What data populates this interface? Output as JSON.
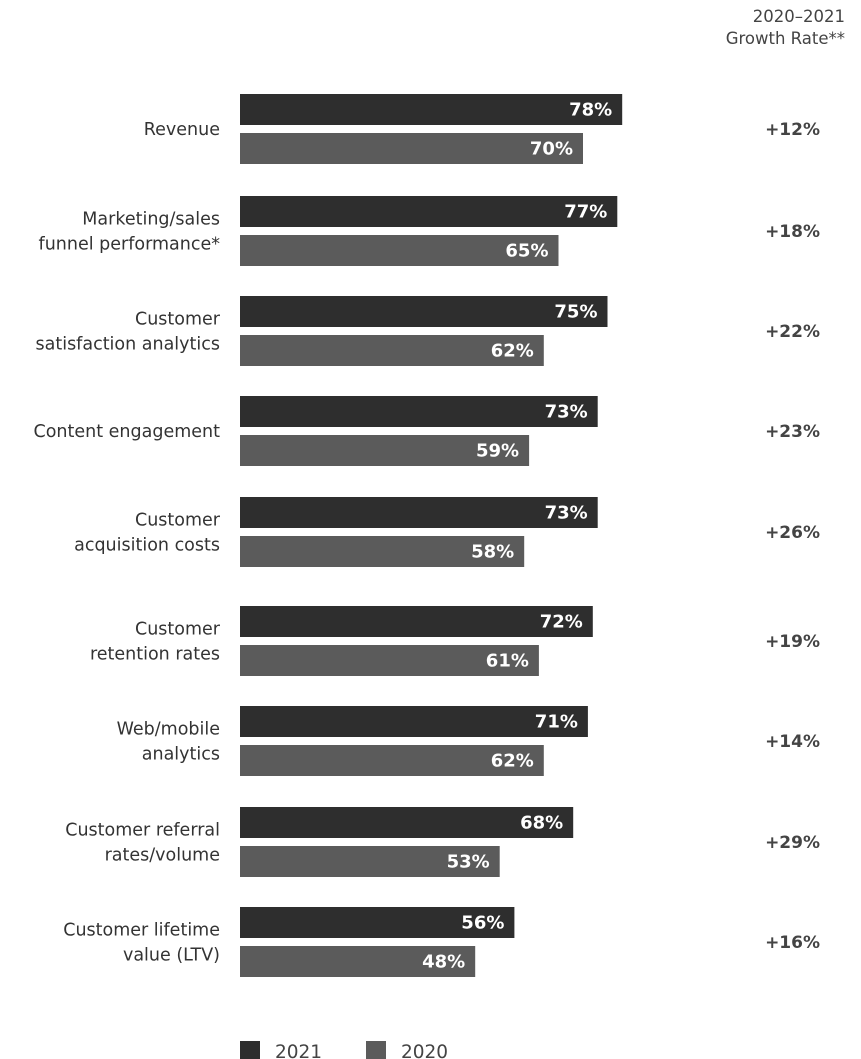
{
  "chart_data": {
    "type": "bar",
    "orientation": "horizontal",
    "header": [
      "2020–2021",
      "Growth Rate**"
    ],
    "categories": [
      [
        "Revenue"
      ],
      [
        "Marketing/sales",
        "funnel performance*"
      ],
      [
        "Customer",
        "satisfaction analytics"
      ],
      [
        "Content engagement"
      ],
      [
        "Customer",
        "acquisition costs"
      ],
      [
        "Customer",
        "retention rates"
      ],
      [
        "Web/mobile",
        "analytics"
      ],
      [
        "Customer referral",
        "rates/volume"
      ],
      [
        "Customer lifetime",
        "value (LTV)"
      ]
    ],
    "series": [
      {
        "name": "2021",
        "color": "#2e2e2e",
        "values": [
          78,
          77,
          75,
          73,
          73,
          72,
          71,
          68,
          56
        ]
      },
      {
        "name": "2020",
        "color": "#5b5b5b",
        "values": [
          70,
          65,
          62,
          59,
          58,
          61,
          62,
          53,
          48
        ]
      }
    ],
    "value_suffix": "%",
    "growth_rates": [
      "+12%",
      "+18%",
      "+22%",
      "+23%",
      "+26%",
      "+19%",
      "+14%",
      "+29%",
      "+16%"
    ],
    "legend_position": "bottom-left"
  }
}
